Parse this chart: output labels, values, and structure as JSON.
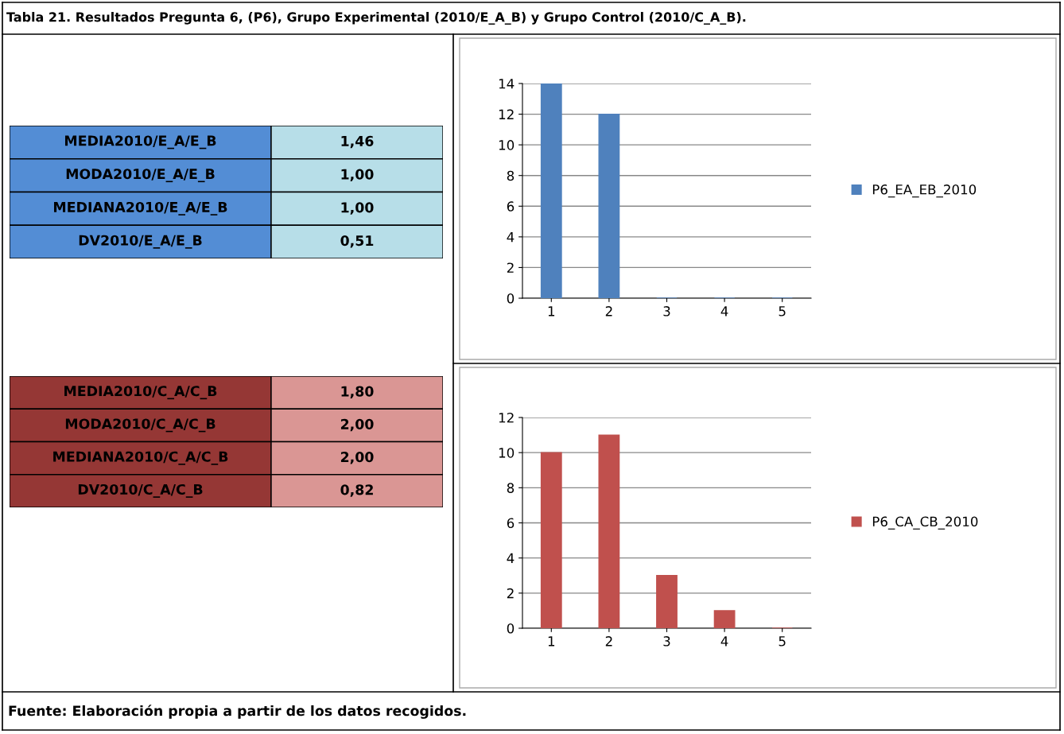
{
  "chart_data": [
    {
      "type": "other",
      "title": "Tabla 21. Resultados Pregunta 6, (P6), Grupo Experimental (2010/E_A_B) y Grupo Control (2010/C_A_B).",
      "colors": [
        "#538dd5",
        "#b7dee8"
      ],
      "annotations": [
        "MEDIA2010/E_A/E_B",
        "1,46",
        "MODA2010/E_A/E_B",
        "1,00",
        "MEDIANA2010/E_A/E_B",
        "1,00",
        "DV2010/E_A/E_B",
        "0,51"
      ]
    },
    {
      "type": "bar",
      "categories": [
        "1",
        "2",
        "3",
        "4",
        "5"
      ],
      "series": [
        {
          "name": "P6_EA_EB_2010",
          "color": "#4f81bd",
          "values": [
            14,
            12,
            0,
            0,
            0
          ]
        }
      ],
      "ylim": [
        0,
        14
      ],
      "yticks": [
        0,
        2,
        4,
        6,
        8,
        10,
        12,
        14
      ],
      "grid": "y",
      "legend": "right"
    },
    {
      "type": "other",
      "colors": [
        "#953735",
        "#da9694"
      ],
      "annotations": [
        "MEDIA2010/C_A/C_B",
        "1,80",
        "MODA2010/C_A/C_B",
        "2,00",
        "MEDIANA2010/C_A/C_B",
        "2,00",
        "DV2010/C_A/C_B",
        "0,82"
      ]
    },
    {
      "type": "bar",
      "categories": [
        "1",
        "2",
        "3",
        "4",
        "5"
      ],
      "series": [
        {
          "name": "P6_CA_CB_2010",
          "color": "#c0504d",
          "values": [
            10,
            11,
            3,
            1,
            0
          ]
        }
      ],
      "ylim": [
        0,
        12
      ],
      "yticks": [
        0,
        2,
        4,
        6,
        8,
        10,
        12
      ],
      "grid": "y",
      "legend": "right"
    },
    {
      "type": "other",
      "annotations": [
        "Fuente: Elaboración propia a partir de los datos recogidos."
      ]
    }
  ]
}
